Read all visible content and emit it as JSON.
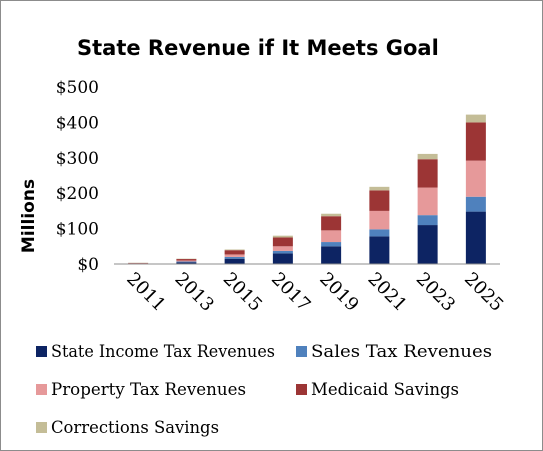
{
  "chart_data": {
    "type": "bar",
    "stacked": true,
    "title": "State Revenue if It Meets Goal",
    "ylabel": "Millions",
    "xlabel": "",
    "ylim": [
      0,
      500
    ],
    "yticks": [
      0,
      100,
      200,
      300,
      400,
      500
    ],
    "ytick_labels": [
      "$0",
      "$100",
      "$200",
      "$300",
      "$400",
      "$500"
    ],
    "categories": [
      "2011",
      "2013",
      "2015",
      "2017",
      "2019",
      "2021",
      "2023",
      "2025"
    ],
    "series": [
      {
        "name": "State Income Tax Revenues",
        "color": "#0d2463",
        "values": [
          1,
          5,
          15,
          30,
          50,
          78,
          110,
          148
        ]
      },
      {
        "name": "Sales Tax Revenues",
        "color": "#4f81bd",
        "values": [
          0.5,
          2,
          5,
          7,
          12,
          20,
          28,
          42
        ]
      },
      {
        "name": "Property Tax Revenues",
        "color": "#e6999a",
        "values": [
          0.5,
          3,
          7,
          13,
          33,
          52,
          78,
          102
        ]
      },
      {
        "name": "Medicaid Savings",
        "color": "#9c3535",
        "values": [
          1,
          4,
          12,
          25,
          40,
          58,
          80,
          108
        ]
      },
      {
        "name": "Corrections Savings",
        "color": "#c4bd97",
        "values": [
          0.5,
          1,
          2,
          5,
          7,
          10,
          15,
          22
        ]
      }
    ],
    "grid": false,
    "legend_position": "bottom"
  }
}
